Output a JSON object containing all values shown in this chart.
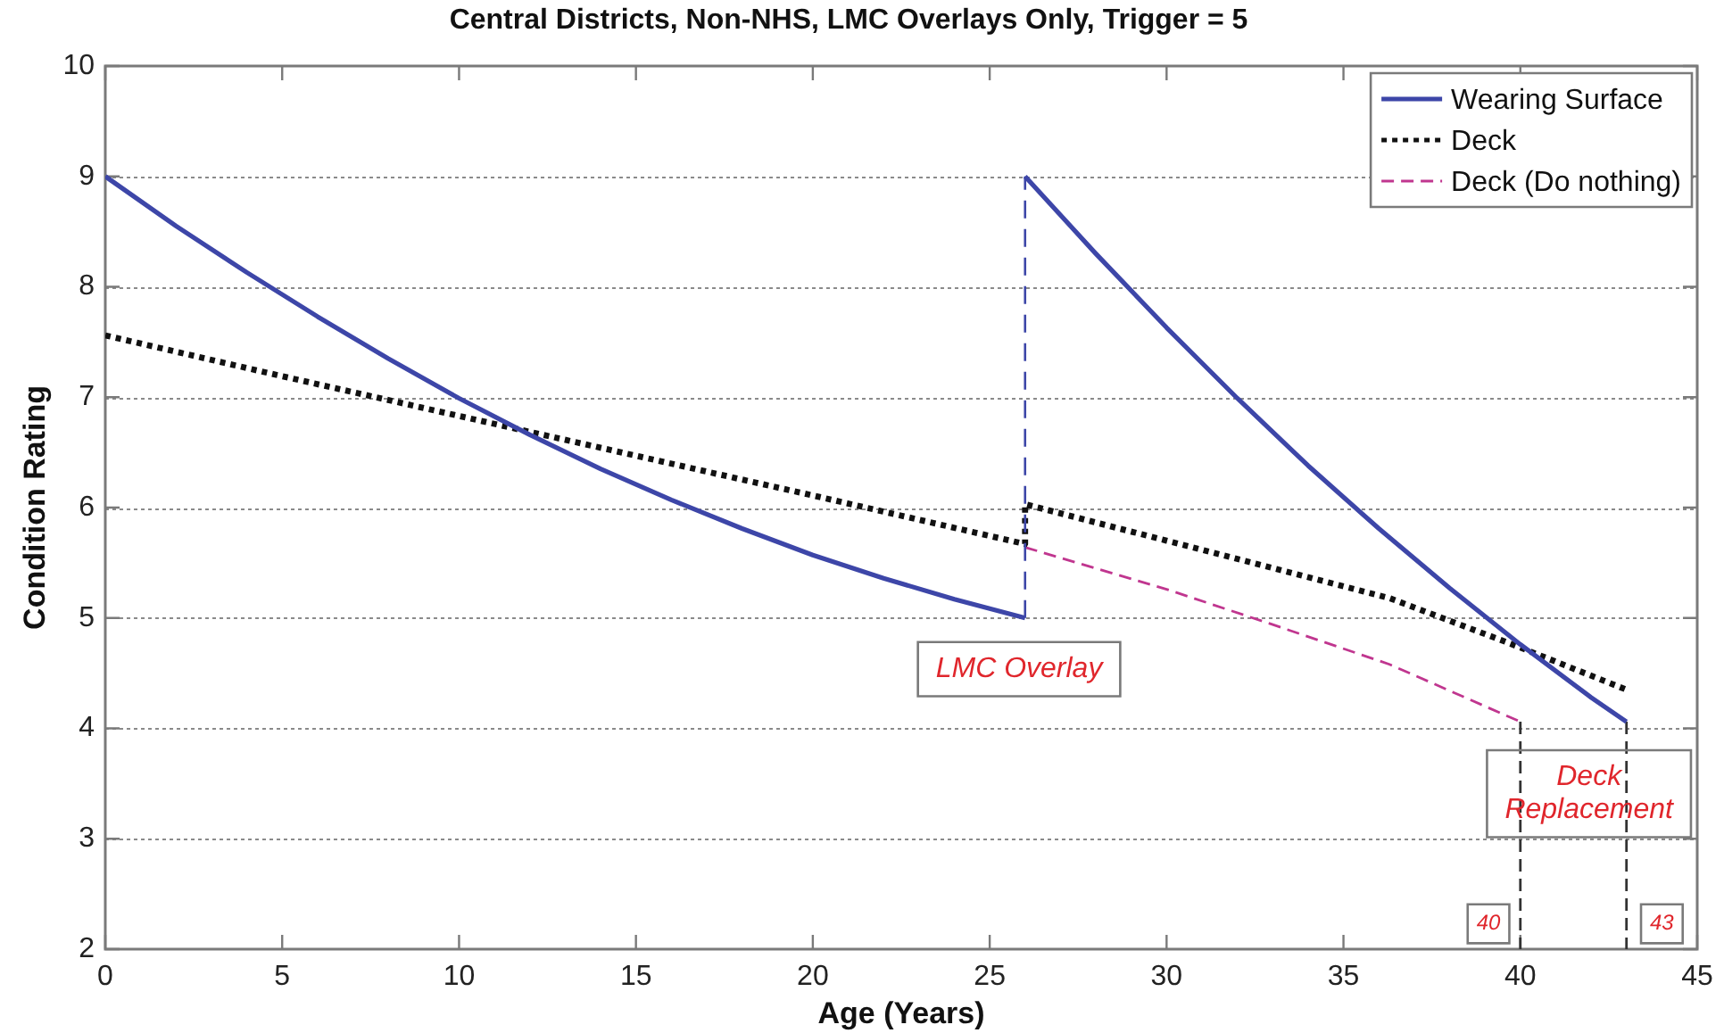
{
  "chart_data": {
    "type": "line",
    "title": "Central Districts, Non-NHS, LMC Overlays Only, Trigger = 5",
    "xlabel": "Age (Years)",
    "ylabel": "Condition Rating",
    "xlim": [
      0,
      45
    ],
    "ylim": [
      2,
      10
    ],
    "xticks": [
      0,
      5,
      10,
      15,
      20,
      25,
      30,
      35,
      40,
      45
    ],
    "yticks": [
      2,
      3,
      4,
      5,
      6,
      7,
      8,
      9,
      10
    ],
    "grid": "y",
    "legend": "top right",
    "series": [
      {
        "name": "Wearing Surface",
        "color": "#3d46a8",
        "line_style": "solid",
        "x": [
          0,
          2,
          4,
          6,
          8,
          10,
          12,
          14,
          16,
          18,
          20,
          22,
          24,
          26,
          26,
          28,
          30,
          32,
          34,
          36,
          38,
          40,
          42,
          43
        ],
        "values": [
          9,
          8.55,
          8.13,
          7.73,
          7.35,
          6.99,
          6.66,
          6.35,
          6.07,
          5.81,
          5.57,
          5.36,
          5.17,
          5,
          9,
          8.3,
          7.63,
          6.99,
          6.38,
          5.81,
          5.27,
          4.76,
          4.28,
          4.06
        ]
      },
      {
        "name": "Deck",
        "color": "#111111",
        "line_style": "dotted",
        "x": [
          0,
          5,
          10,
          15,
          20,
          26,
          26,
          30,
          36.3,
          39.7,
          43
        ],
        "values": [
          7.56,
          7.19,
          6.83,
          6.47,
          6.11,
          5.67,
          6.03,
          5.7,
          5.18,
          4.77,
          4.35
        ]
      },
      {
        "name": "Deck (Do nothing)",
        "color": "#c0368f",
        "line_style": "dashed",
        "x": [
          26,
          30,
          33,
          36.3,
          40
        ],
        "values": [
          5.64,
          5.26,
          4.94,
          4.58,
          4.06
        ]
      },
      {
        "color": "#333333",
        "line_style": "dashed",
        "x": [
          40,
          40
        ],
        "values": [
          4.06,
          2
        ]
      },
      {
        "color": "#333333",
        "line_style": "dashed",
        "x": [
          43,
          43
        ],
        "values": [
          4.06,
          2
        ]
      }
    ],
    "annotations": [
      "LMC Overlay",
      "Deck Replacement",
      {
        "text": "40",
        "x": 39.1,
        "y": 2.23
      },
      {
        "text": "43",
        "x": 44,
        "y": 2.23
      }
    ]
  }
}
